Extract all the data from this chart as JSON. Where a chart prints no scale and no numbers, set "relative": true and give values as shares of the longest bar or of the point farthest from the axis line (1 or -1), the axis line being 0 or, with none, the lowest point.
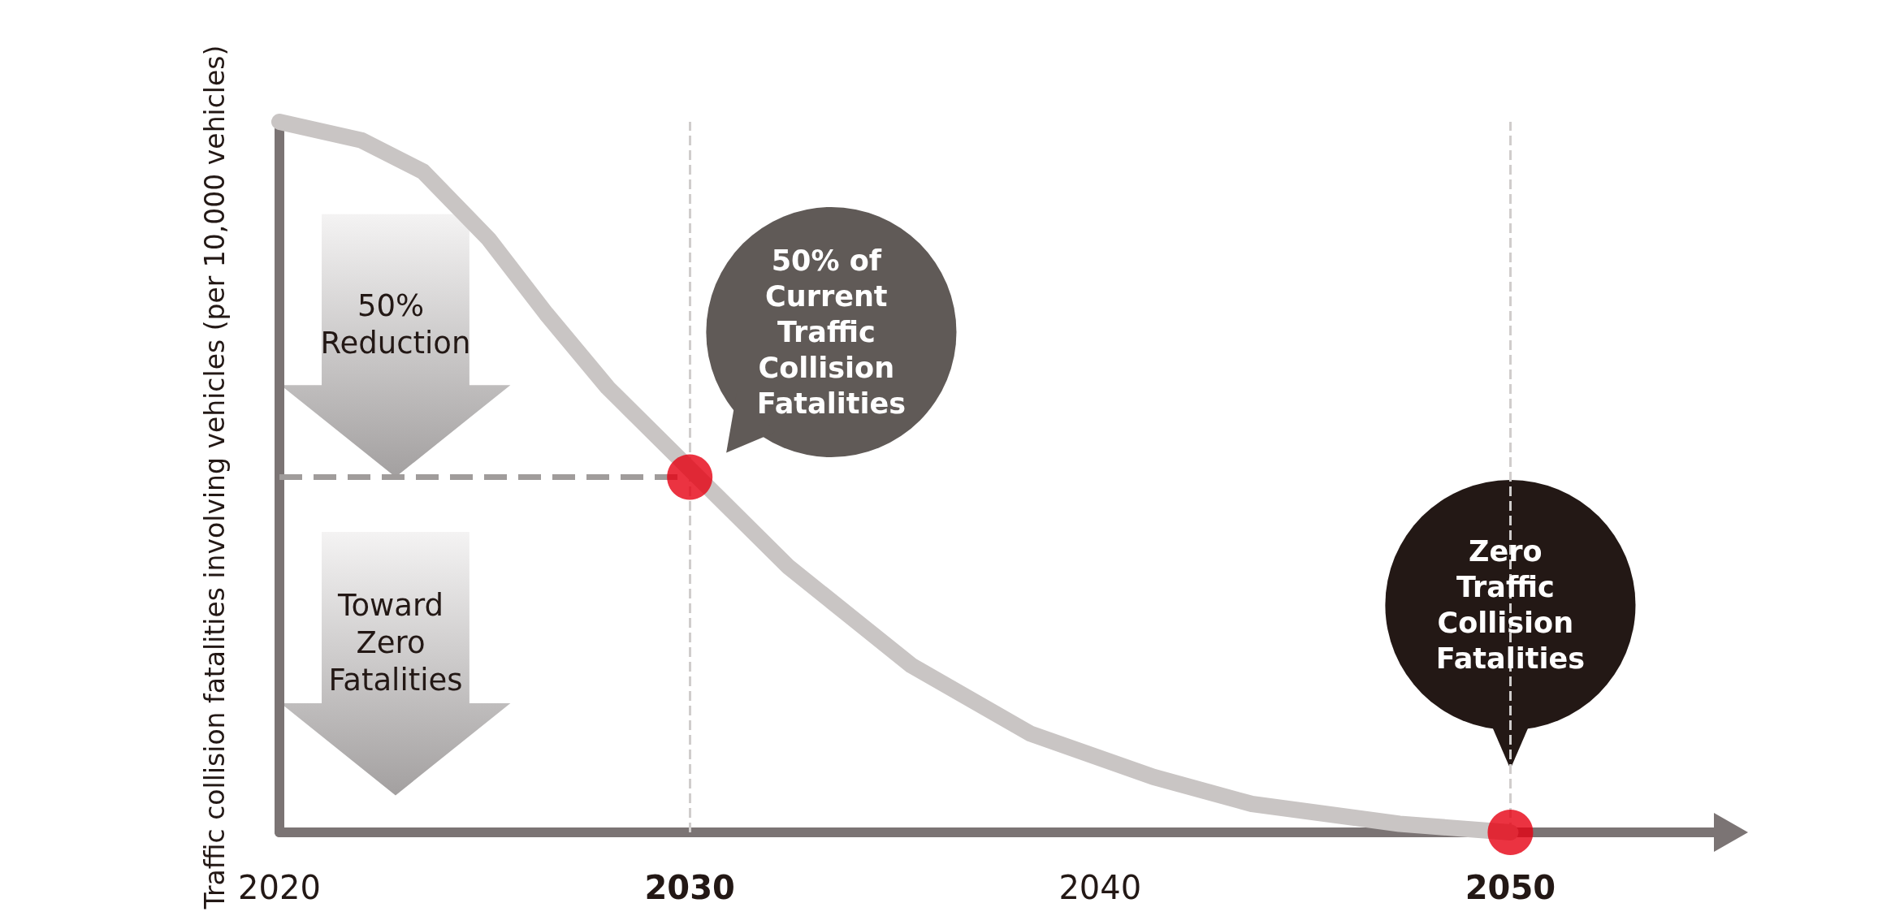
{
  "chart_data": {
    "type": "line",
    "relative": true,
    "ylabel": "Traffic collision fatalities involving vehicles (per 10,000 vehicles)",
    "xlim": [
      2020,
      2055
    ],
    "xticks": [
      2020,
      2030,
      2040,
      2050
    ],
    "series": [
      {
        "type": "line",
        "color": "#c9c5c4",
        "marker": "none",
        "x": [
          2020,
          2022,
          2023.5,
          2025.1,
          2026.5,
          2028,
          2032.4,
          2035.4,
          2038.3,
          2041.3,
          2043.7,
          2047.3,
          2050
        ],
        "values": [
          1,
          0.974,
          0.93,
          0.835,
          0.73,
          0.626,
          0.374,
          0.235,
          0.139,
          0.078,
          0.04,
          0.012,
          0
        ]
      },
      {
        "type": "scatter",
        "color": "#e60012",
        "marker": "circle",
        "x": [
          2030,
          2050
        ],
        "values": [
          0.5,
          0
        ]
      }
    ],
    "ref_lines": [
      {
        "axis": "y",
        "value": 0.5,
        "color": "#a09c9b",
        "line_style": "dashed"
      },
      {
        "axis": "x",
        "value": 2030,
        "color": "#d0cdcc",
        "line_style": "dashed"
      },
      {
        "axis": "x",
        "value": 2050,
        "color": "#d0cdcc",
        "line_style": "dashed"
      }
    ],
    "annotations": [
      "50% Reduction",
      "Toward Zero Fatalities",
      "50% of Current Traffic Collision Fatalities",
      "Zero Traffic Collision Fatalities"
    ],
    "grid": false
  }
}
